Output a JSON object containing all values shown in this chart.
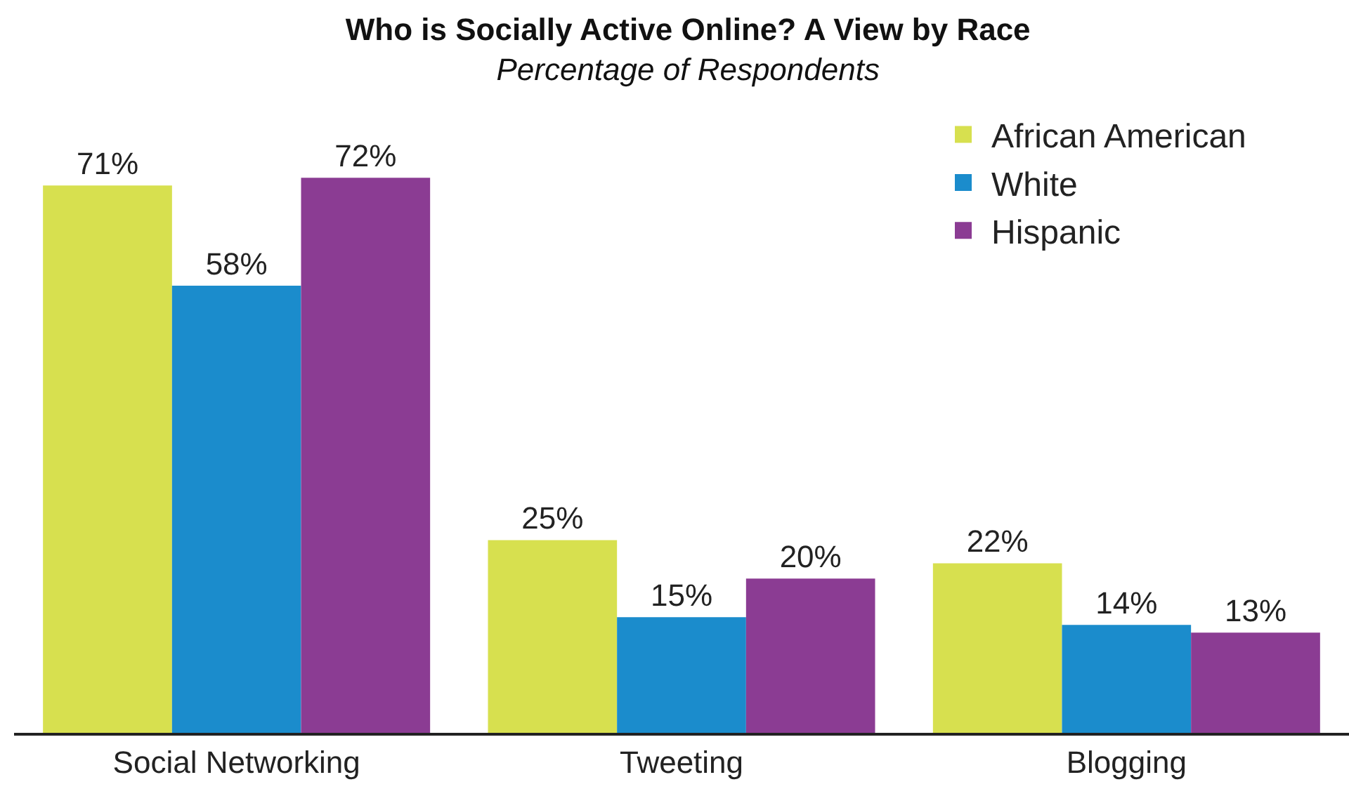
{
  "chart_data": {
    "type": "bar",
    "title": "Who is Socially Active Online? A View by Race",
    "subtitle": "Percentage of Respondents",
    "categories": [
      "Social Networking",
      "Tweeting",
      "Blogging"
    ],
    "series": [
      {
        "name": "African American",
        "color": "#d7e04f",
        "values": [
          71,
          25,
          22
        ],
        "value_labels": [
          "71%",
          "25%",
          "22%"
        ]
      },
      {
        "name": "White",
        "color": "#1b8ccc",
        "values": [
          58,
          15,
          14
        ],
        "value_labels": [
          "58%",
          "15%",
          "14%"
        ]
      },
      {
        "name": "Hispanic",
        "color": "#8b3c93",
        "values": [
          72,
          20,
          13
        ],
        "value_labels": [
          "72%",
          "20%",
          "13%"
        ]
      }
    ],
    "legend": "top right"
  }
}
